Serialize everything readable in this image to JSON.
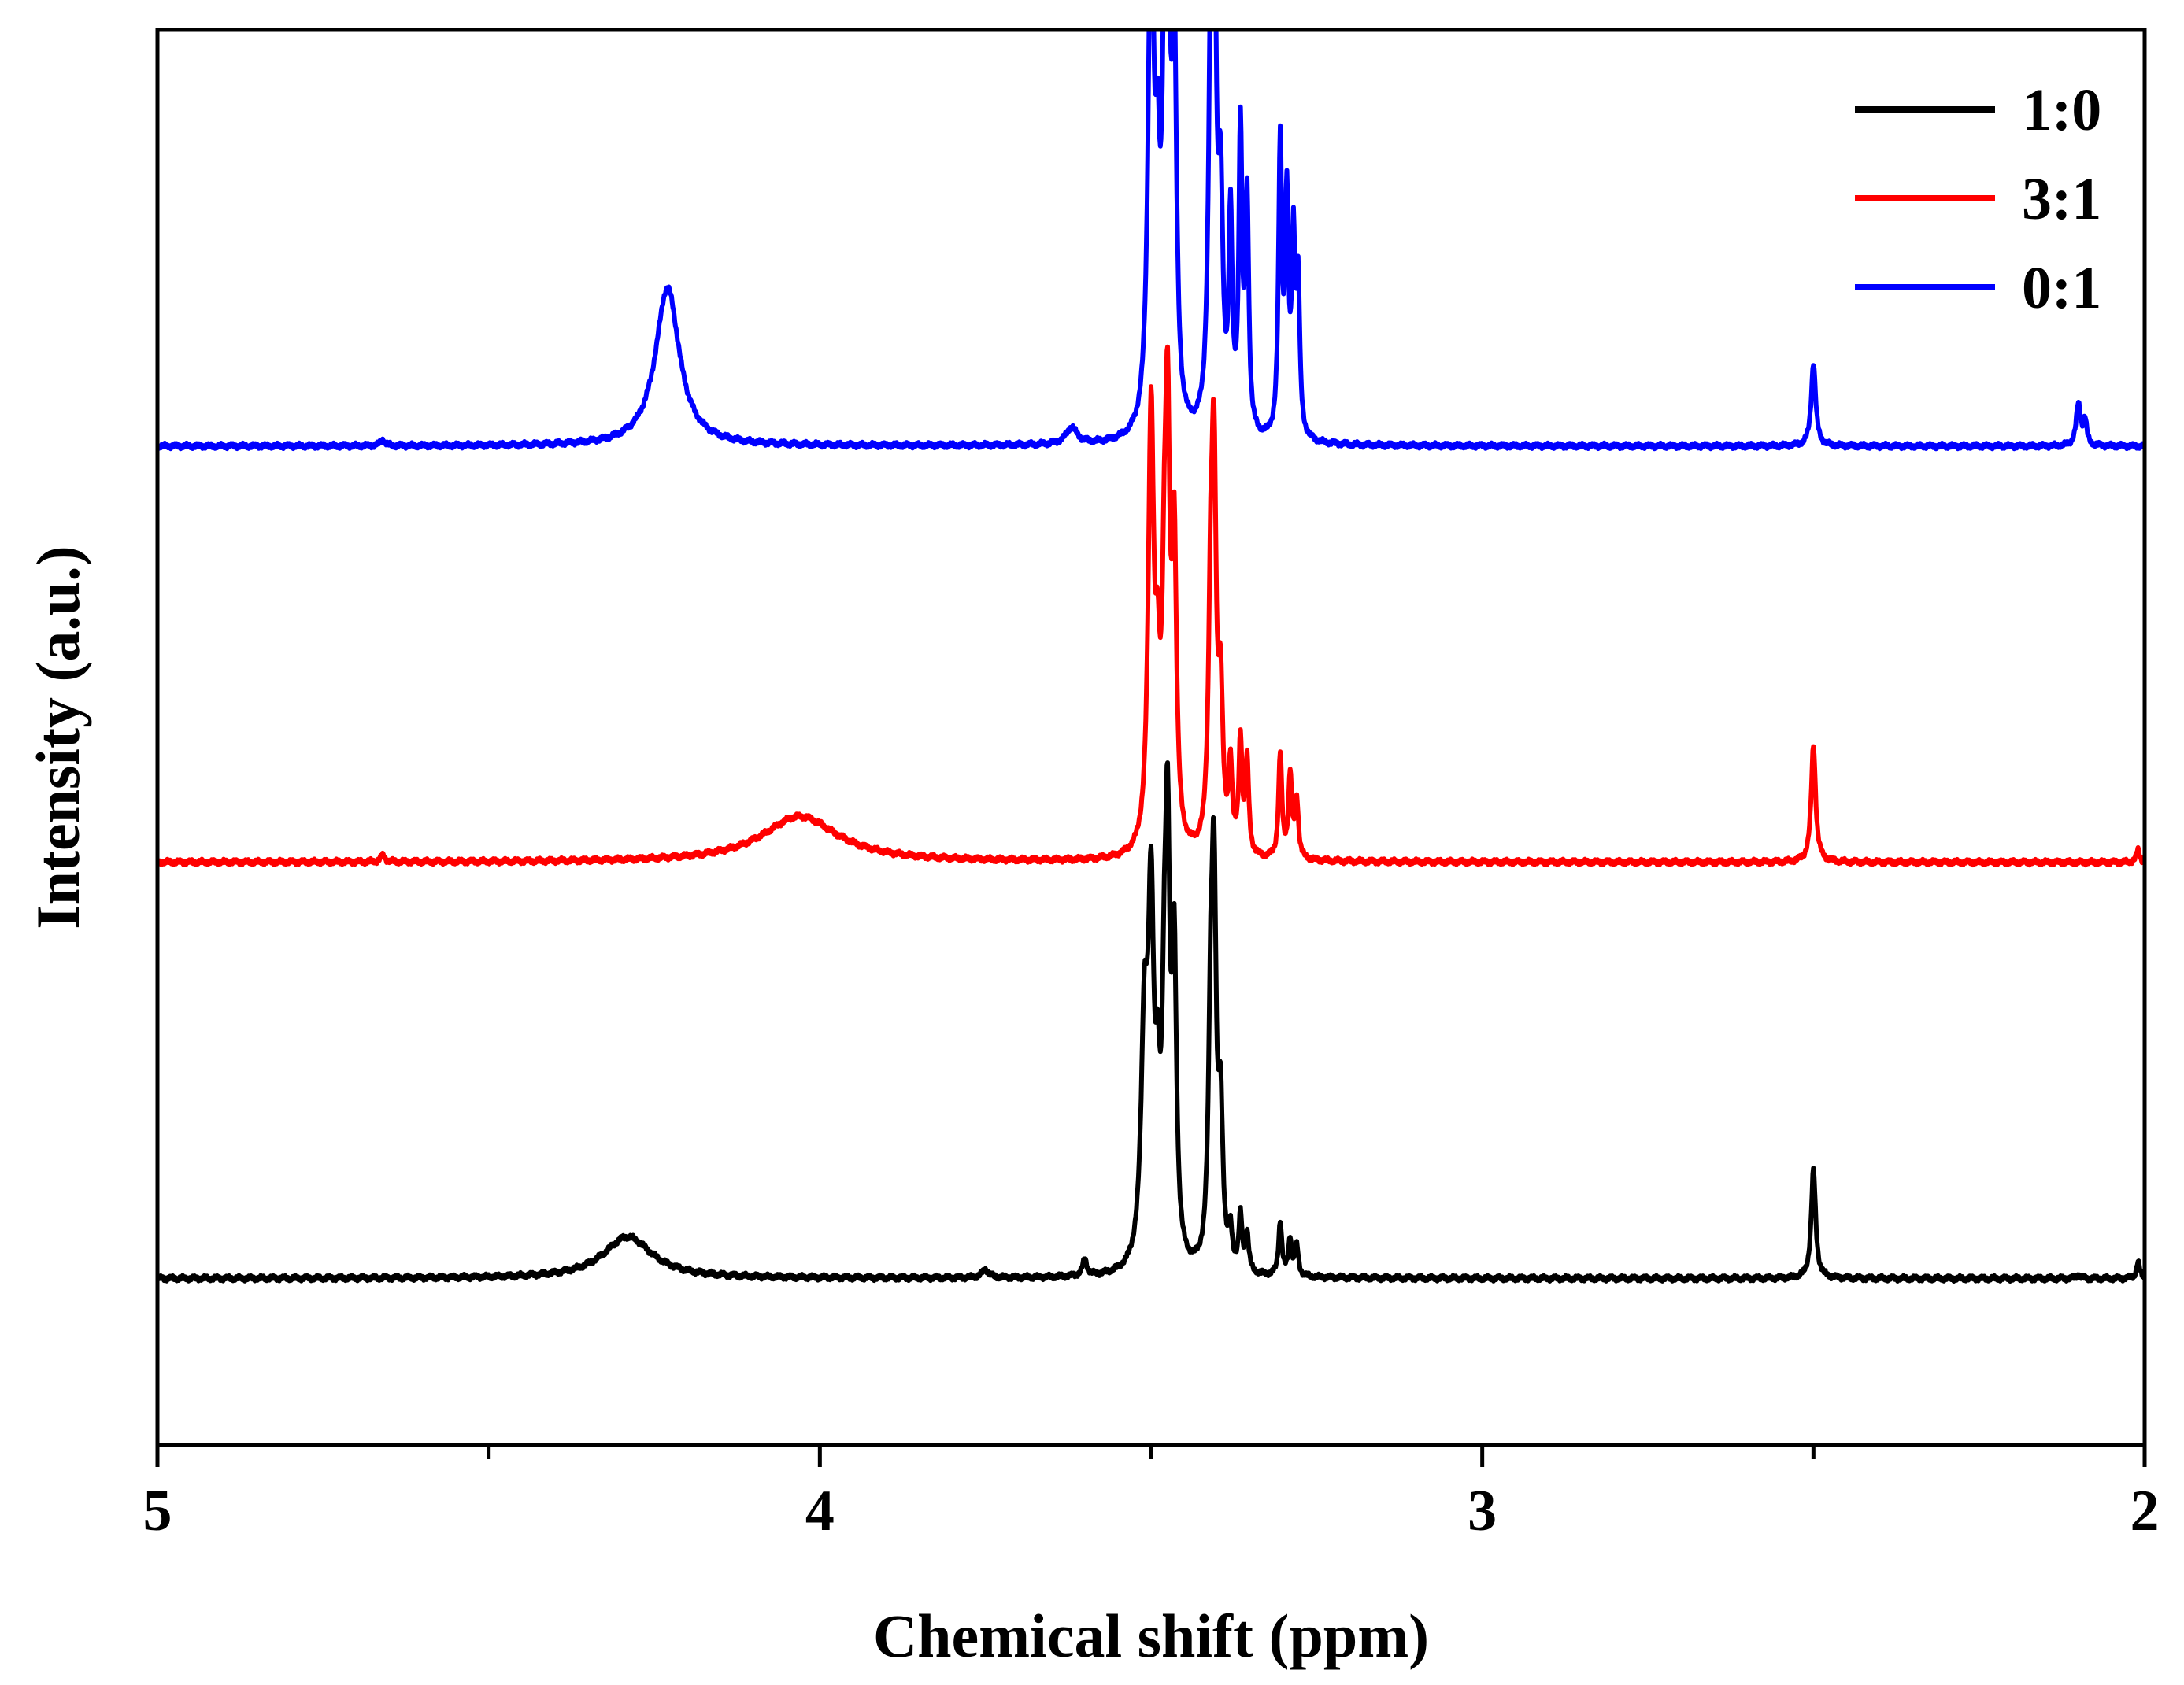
{
  "chart_data": {
    "type": "line",
    "title": "",
    "xlabel": "Chemical shift (ppm)",
    "ylabel": "Intensity (a.u.)",
    "xlim": [
      5,
      2
    ],
    "x_reversed": true,
    "xticks": [
      5,
      4,
      3,
      2
    ],
    "xtick_labels": [
      "5",
      "4",
      "3",
      "2"
    ],
    "xminor_ticks": [
      4.5,
      3.5,
      2.5
    ],
    "ylim": [
      -0.4,
      3.0
    ],
    "yticks_visible": false,
    "grid": false,
    "legend": {
      "position": "top-right"
    },
    "series": [
      {
        "name": "1:0",
        "color": "#000000",
        "offset": 0.0,
        "peaks": [
          {
            "x": 4.29,
            "h": 0.1,
            "w": 0.045
          },
          {
            "x": 3.75,
            "h": 0.02,
            "w": 0.006
          },
          {
            "x": 3.6,
            "h": 0.04,
            "w": 0.004
          },
          {
            "x": 3.51,
            "h": 0.55,
            "w": 0.006
          },
          {
            "x": 3.5,
            "h": 0.8,
            "w": 0.005
          },
          {
            "x": 3.49,
            "h": 0.3,
            "w": 0.004
          },
          {
            "x": 3.48,
            "h": 0.45,
            "w": 0.004
          },
          {
            "x": 3.475,
            "h": 0.9,
            "w": 0.004
          },
          {
            "x": 3.465,
            "h": 0.7,
            "w": 0.004
          },
          {
            "x": 3.41,
            "h": 0.5,
            "w": 0.004
          },
          {
            "x": 3.405,
            "h": 0.85,
            "w": 0.004
          },
          {
            "x": 3.395,
            "h": 0.35,
            "w": 0.004
          },
          {
            "x": 3.38,
            "h": 0.08,
            "w": 0.003
          },
          {
            "x": 3.365,
            "h": 0.13,
            "w": 0.003
          },
          {
            "x": 3.355,
            "h": 0.09,
            "w": 0.003
          },
          {
            "x": 3.305,
            "h": 0.13,
            "w": 0.003
          },
          {
            "x": 3.29,
            "h": 0.09,
            "w": 0.003
          },
          {
            "x": 3.28,
            "h": 0.07,
            "w": 0.003
          },
          {
            "x": 2.5,
            "h": 0.26,
            "w": 0.004
          },
          {
            "x": 2.1,
            "h": 0.01,
            "w": 0.003
          },
          {
            "x": 2.01,
            "h": 0.04,
            "w": 0.003
          }
        ]
      },
      {
        "name": "3:1",
        "color": "#ff0000",
        "offset": 1.0,
        "peaks": [
          {
            "x": 4.03,
            "h": 0.11,
            "w": 0.07
          },
          {
            "x": 4.66,
            "h": 0.015,
            "w": 0.004
          },
          {
            "x": 3.5,
            "h": 1.05,
            "w": 0.005
          },
          {
            "x": 3.49,
            "h": 0.3,
            "w": 0.004
          },
          {
            "x": 3.48,
            "h": 0.45,
            "w": 0.004
          },
          {
            "x": 3.475,
            "h": 0.9,
            "w": 0.004
          },
          {
            "x": 3.465,
            "h": 0.7,
            "w": 0.004
          },
          {
            "x": 3.41,
            "h": 0.5,
            "w": 0.004
          },
          {
            "x": 3.405,
            "h": 0.85,
            "w": 0.004
          },
          {
            "x": 3.395,
            "h": 0.35,
            "w": 0.004
          },
          {
            "x": 3.38,
            "h": 0.2,
            "w": 0.003
          },
          {
            "x": 3.365,
            "h": 0.27,
            "w": 0.003
          },
          {
            "x": 3.355,
            "h": 0.22,
            "w": 0.003
          },
          {
            "x": 3.305,
            "h": 0.25,
            "w": 0.003
          },
          {
            "x": 3.29,
            "h": 0.2,
            "w": 0.003
          },
          {
            "x": 3.28,
            "h": 0.14,
            "w": 0.003
          },
          {
            "x": 2.5,
            "h": 0.28,
            "w": 0.004
          },
          {
            "x": 2.01,
            "h": 0.03,
            "w": 0.003
          }
        ]
      },
      {
        "name": "0:1",
        "color": "#0000ff",
        "offset": 2.0,
        "peaks": [
          {
            "x": 4.23,
            "h": 0.38,
            "w": 0.022
          },
          {
            "x": 4.66,
            "h": 0.015,
            "w": 0.004
          },
          {
            "x": 3.62,
            "h": 0.04,
            "w": 0.01
          },
          {
            "x": 3.5,
            "h": 1.25,
            "w": 0.005
          },
          {
            "x": 3.49,
            "h": 0.45,
            "w": 0.004
          },
          {
            "x": 3.48,
            "h": 0.6,
            "w": 0.004
          },
          {
            "x": 3.475,
            "h": 1.15,
            "w": 0.004
          },
          {
            "x": 3.465,
            "h": 0.9,
            "w": 0.004
          },
          {
            "x": 3.41,
            "h": 0.7,
            "w": 0.004
          },
          {
            "x": 3.405,
            "h": 1.15,
            "w": 0.004
          },
          {
            "x": 3.395,
            "h": 0.5,
            "w": 0.004
          },
          {
            "x": 3.38,
            "h": 0.5,
            "w": 0.003
          },
          {
            "x": 3.365,
            "h": 0.72,
            "w": 0.003
          },
          {
            "x": 3.355,
            "h": 0.55,
            "w": 0.003
          },
          {
            "x": 3.305,
            "h": 0.7,
            "w": 0.003
          },
          {
            "x": 3.295,
            "h": 0.55,
            "w": 0.003
          },
          {
            "x": 3.285,
            "h": 0.45,
            "w": 0.003
          },
          {
            "x": 3.278,
            "h": 0.35,
            "w": 0.003
          },
          {
            "x": 2.5,
            "h": 0.2,
            "w": 0.004
          },
          {
            "x": 2.1,
            "h": 0.1,
            "w": 0.004
          },
          {
            "x": 2.09,
            "h": 0.06,
            "w": 0.003
          }
        ]
      }
    ]
  }
}
